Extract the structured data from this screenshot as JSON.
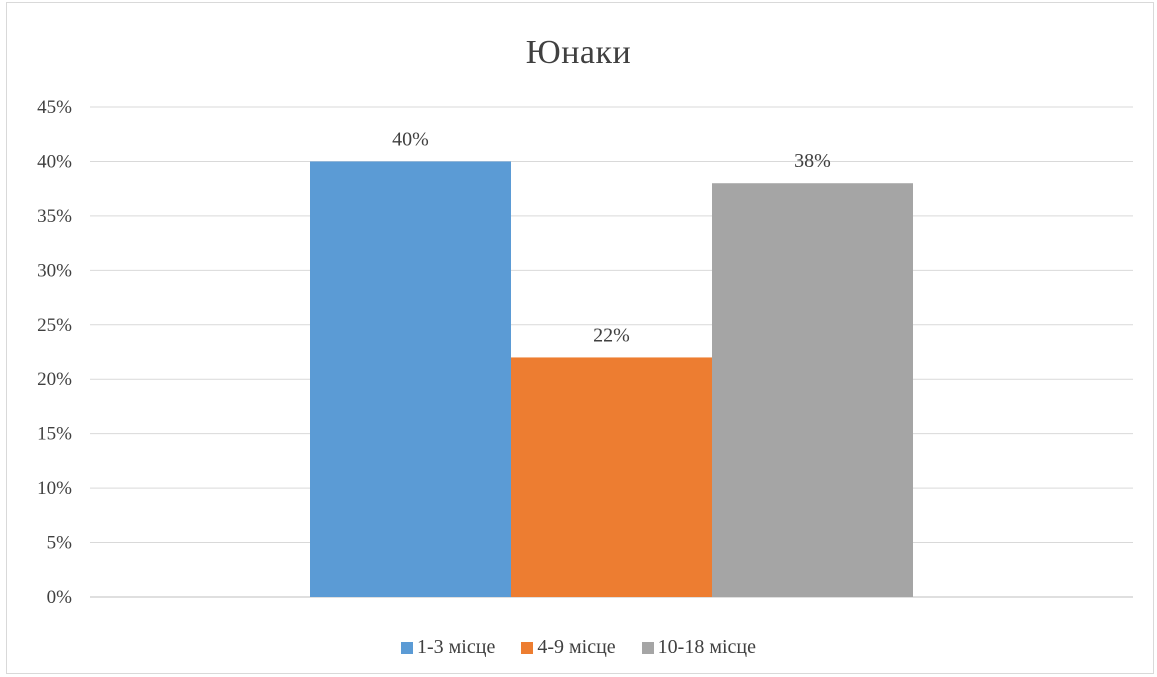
{
  "chart_data": {
    "type": "bar",
    "title": "Юнаки",
    "xlabel": "",
    "ylabel": "",
    "ylim": [
      0,
      45
    ],
    "yticks": [
      "0%",
      "5%",
      "10%",
      "15%",
      "20%",
      "25%",
      "30%",
      "35%",
      "40%",
      "45%"
    ],
    "grid": true,
    "legend_position": "bottom",
    "series": [
      {
        "name": "1-3 місце",
        "value": 40,
        "label": "40%",
        "color": "#5b9bd5"
      },
      {
        "name": "4-9 місце",
        "value": 22,
        "label": "22%",
        "color": "#ed7d31"
      },
      {
        "name": "10-18 місце",
        "value": 38,
        "label": "38%",
        "color": "#a5a5a5"
      }
    ]
  }
}
